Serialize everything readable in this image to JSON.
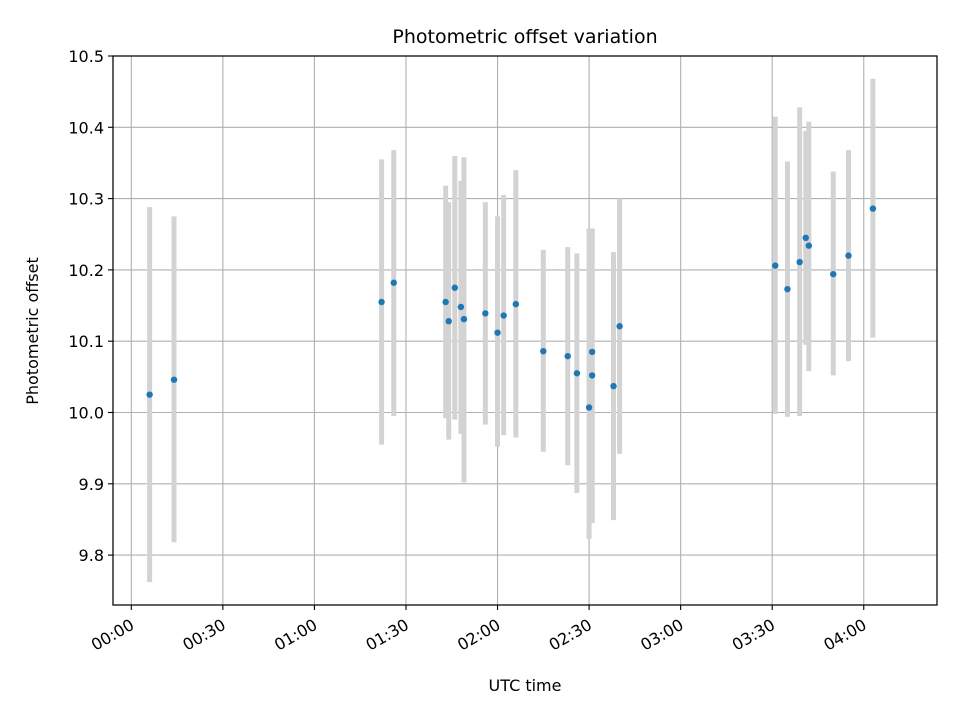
{
  "chart_data": {
    "type": "scatter",
    "title": "Photometric offset variation",
    "xlabel": "UTC time",
    "ylabel": "Photometric offset",
    "x_ticks": [
      "00:00",
      "00:30",
      "01:00",
      "01:30",
      "02:00",
      "02:30",
      "03:00",
      "03:30",
      "04:00"
    ],
    "y_ticks": [
      "9.8",
      "9.9",
      "10.0",
      "10.1",
      "10.2",
      "10.3",
      "10.4",
      "10.5"
    ],
    "xlim": [
      "23:54",
      "04:24"
    ],
    "ylim": [
      9.73,
      10.5
    ],
    "grid": true,
    "marker_color": "#1f77b4",
    "errorbar_color": "#d3d3d3",
    "points": [
      {
        "time": "00:06",
        "value": 10.025,
        "err_low": 9.762,
        "err_high": 10.288
      },
      {
        "time": "00:14",
        "value": 10.046,
        "err_low": 9.818,
        "err_high": 10.275
      },
      {
        "time": "01:22",
        "value": 10.155,
        "err_low": 9.955,
        "err_high": 10.355
      },
      {
        "time": "01:26",
        "value": 10.182,
        "err_low": 9.995,
        "err_high": 10.368
      },
      {
        "time": "01:43",
        "value": 10.155,
        "err_low": 9.992,
        "err_high": 10.318
      },
      {
        "time": "01:44",
        "value": 10.128,
        "err_low": 9.962,
        "err_high": 10.295
      },
      {
        "time": "01:46",
        "value": 10.175,
        "err_low": 9.99,
        "err_high": 10.36
      },
      {
        "time": "01:48",
        "value": 10.148,
        "err_low": 9.97,
        "err_high": 10.325
      },
      {
        "time": "01:49",
        "value": 10.131,
        "err_low": 9.902,
        "err_high": 10.358
      },
      {
        "time": "01:56",
        "value": 10.139,
        "err_low": 9.983,
        "err_high": 10.295
      },
      {
        "time": "02:00",
        "value": 10.112,
        "err_low": 9.952,
        "err_high": 10.275
      },
      {
        "time": "02:02",
        "value": 10.136,
        "err_low": 9.968,
        "err_high": 10.305
      },
      {
        "time": "02:06",
        "value": 10.152,
        "err_low": 9.965,
        "err_high": 10.34
      },
      {
        "time": "02:15",
        "value": 10.086,
        "err_low": 9.945,
        "err_high": 10.228
      },
      {
        "time": "02:23",
        "value": 10.079,
        "err_low": 9.926,
        "err_high": 10.232
      },
      {
        "time": "02:26",
        "value": 10.055,
        "err_low": 9.887,
        "err_high": 10.223
      },
      {
        "time": "02:30",
        "value": 10.007,
        "err_low": 9.823,
        "err_high": 10.258
      },
      {
        "time": "02:31",
        "value": 10.085,
        "err_low": 9.845,
        "err_high": 10.258
      },
      {
        "time": "02:31",
        "value": 10.052,
        "err_low": 9.845,
        "err_high": 10.258
      },
      {
        "time": "02:38",
        "value": 10.037,
        "err_low": 9.849,
        "err_high": 10.225
      },
      {
        "time": "02:40",
        "value": 10.121,
        "err_low": 9.942,
        "err_high": 10.3
      },
      {
        "time": "03:31",
        "value": 10.206,
        "err_low": 9.998,
        "err_high": 10.415
      },
      {
        "time": "03:35",
        "value": 10.173,
        "err_low": 9.994,
        "err_high": 10.352
      },
      {
        "time": "03:39",
        "value": 10.211,
        "err_low": 9.995,
        "err_high": 10.428
      },
      {
        "time": "03:41",
        "value": 10.245,
        "err_low": 10.095,
        "err_high": 10.395
      },
      {
        "time": "03:42",
        "value": 10.234,
        "err_low": 10.058,
        "err_high": 10.408
      },
      {
        "time": "03:50",
        "value": 10.194,
        "err_low": 10.052,
        "err_high": 10.338
      },
      {
        "time": "03:55",
        "value": 10.22,
        "err_low": 10.072,
        "err_high": 10.368
      },
      {
        "time": "04:03",
        "value": 10.286,
        "err_low": 10.105,
        "err_high": 10.468
      }
    ]
  }
}
